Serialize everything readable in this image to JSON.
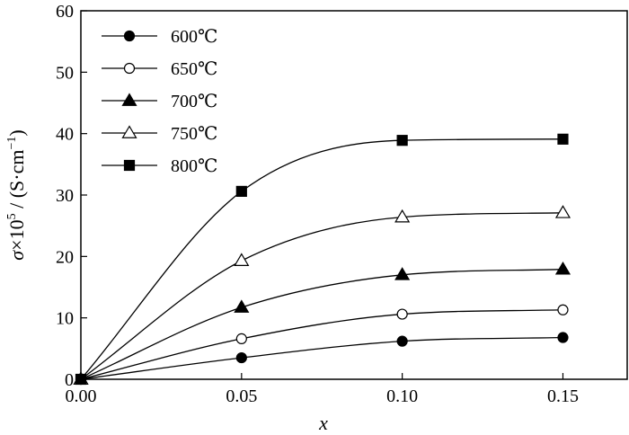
{
  "chart_data": {
    "type": "line",
    "title": "",
    "xlabel": "x",
    "ylabel": {
      "sigma": "σ",
      "times": "×10",
      "exp": "5",
      "unit_open": " / (S·cm",
      "unit_exp": "−1",
      "unit_close": ")"
    },
    "xlim": [
      0.0,
      0.17
    ],
    "ylim": [
      0,
      60
    ],
    "xticks": [
      0.0,
      0.05,
      0.1,
      0.15
    ],
    "xtick_labels": [
      "0.00",
      "0.05",
      "0.10",
      "0.15"
    ],
    "yticks": [
      0,
      10,
      20,
      30,
      40,
      50,
      60
    ],
    "ytick_labels": [
      "0",
      "10",
      "20",
      "30",
      "40",
      "50",
      "60"
    ],
    "grid": false,
    "legend_position": "top-left",
    "x": [
      0.0,
      0.05,
      0.1,
      0.15
    ],
    "series": [
      {
        "name": "600℃",
        "marker": "circle",
        "filled": true,
        "values": [
          0,
          3.5,
          6.2,
          6.8
        ]
      },
      {
        "name": "650℃",
        "marker": "circle",
        "filled": false,
        "values": [
          0,
          6.6,
          10.6,
          11.3
        ]
      },
      {
        "name": "700℃",
        "marker": "triangle",
        "filled": true,
        "values": [
          0,
          11.7,
          17.0,
          17.9
        ]
      },
      {
        "name": "750℃",
        "marker": "triangle",
        "filled": false,
        "values": [
          0,
          19.3,
          26.4,
          27.1
        ]
      },
      {
        "name": "800℃",
        "marker": "square",
        "filled": true,
        "values": [
          0,
          30.6,
          38.9,
          39.1
        ]
      }
    ]
  }
}
